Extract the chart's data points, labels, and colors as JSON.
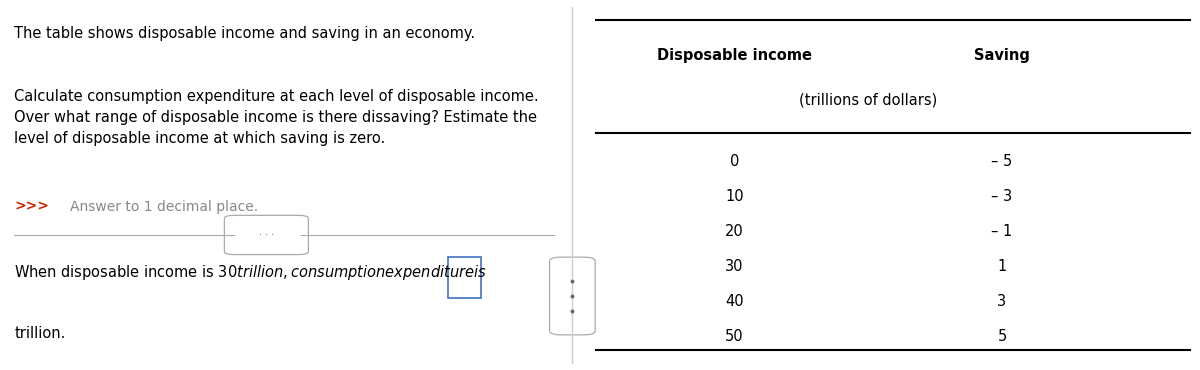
{
  "left_panel": {
    "title_text": "The table shows disposable income and saving in an economy.",
    "body_text": "Calculate consumption expenditure at each level of disposable income.\nOver what range of disposable income is there dissaving? Estimate the\nlevel of disposable income at which saving is zero.",
    "prompt_arrow": ">>>",
    "prompt_text": "Answer to 1 decimal place.",
    "bottom_line1": "When disposable income is $30 trillion, consumption expenditure is $",
    "bottom_line2": "trillion.",
    "input_box_color": "#4472C4",
    "divider_color": "#aaaaaa"
  },
  "right_panel": {
    "col1_header": "Disposable income",
    "col2_header": "Saving",
    "subheader": "(trillions of dollars)",
    "rows": [
      [
        "0",
        "– 5"
      ],
      [
        "10",
        "– 3"
      ],
      [
        "20",
        "– 1"
      ],
      [
        "30",
        "1"
      ],
      [
        "40",
        "3"
      ],
      [
        "50",
        "5"
      ]
    ]
  },
  "bg_color": "#ffffff",
  "text_color": "#000000",
  "prompt_color": "#cc2200",
  "prompt_gray": "#888888",
  "font_size_title": 10.5,
  "font_size_body": 10.5,
  "font_size_table": 10.5,
  "font_size_prompt": 10.0
}
